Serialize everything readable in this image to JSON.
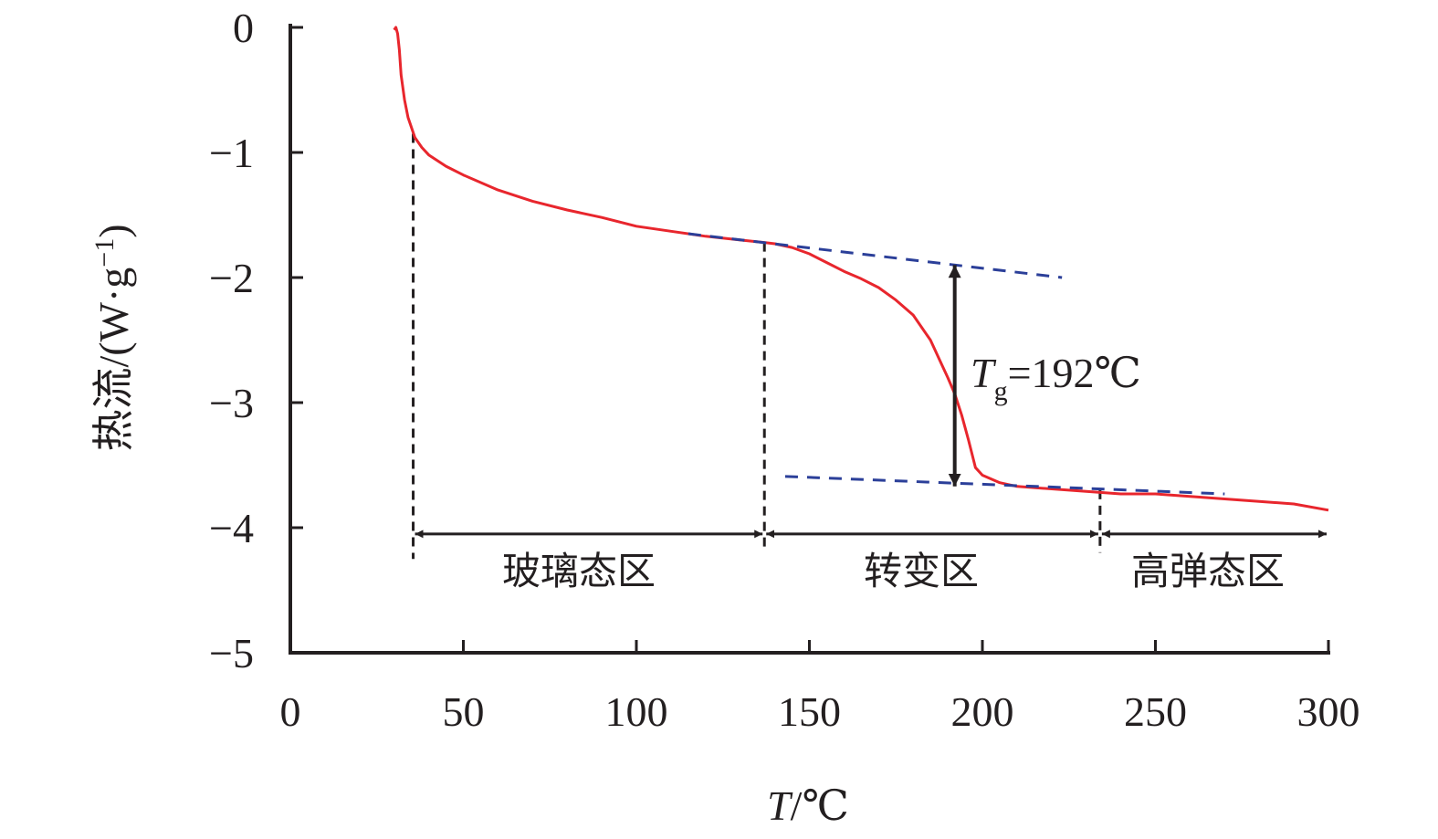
{
  "chart_data": {
    "type": "line",
    "xlabel": {
      "var": "T",
      "unit": "/℃"
    },
    "ylabel": {
      "prefix": "热流/(W·g",
      "sup": "−1",
      "suffix": ")"
    },
    "xlim": [
      0,
      300
    ],
    "ylim": [
      -5,
      0
    ],
    "xticks": [
      "0",
      "50",
      "100",
      "150",
      "200",
      "250",
      "300"
    ],
    "yticks": [
      "0",
      "−1",
      "−2",
      "−3",
      "−4",
      "−5"
    ],
    "grid": false,
    "series": [
      {
        "color": "#e8262d",
        "x": [
          30,
          30.5,
          31,
          31.5,
          32,
          33,
          34,
          36,
          38,
          40,
          45,
          50,
          60,
          70,
          80,
          90,
          100,
          110,
          120,
          130,
          137,
          140,
          145,
          150,
          155,
          160,
          165,
          170,
          175,
          180,
          185,
          188,
          190,
          192,
          194,
          196,
          198,
          200,
          205,
          210,
          220,
          230,
          240,
          250,
          260,
          270,
          280,
          290,
          300
        ],
        "y": [
          -0.02,
          0.0,
          -0.05,
          -0.18,
          -0.38,
          -0.58,
          -0.72,
          -0.88,
          -0.96,
          -1.02,
          -1.11,
          -1.18,
          -1.3,
          -1.39,
          -1.46,
          -1.52,
          -1.59,
          -1.63,
          -1.67,
          -1.7,
          -1.72,
          -1.73,
          -1.76,
          -1.81,
          -1.88,
          -1.95,
          -2.01,
          -2.08,
          -2.18,
          -2.3,
          -2.5,
          -2.68,
          -2.8,
          -2.93,
          -3.1,
          -3.3,
          -3.52,
          -3.58,
          -3.64,
          -3.67,
          -3.69,
          -3.71,
          -3.73,
          -3.73,
          -3.75,
          -3.77,
          -3.79,
          -3.81,
          -3.86
        ]
      }
    ],
    "baselines": [
      {
        "color": "#2b3f99",
        "dash": true,
        "x": [
          115,
          223
        ],
        "y": [
          -1.65,
          -2.0
        ]
      },
      {
        "color": "#2b3f99",
        "dash": true,
        "x": [
          143,
          270
        ],
        "y": [
          -3.59,
          -3.73
        ]
      }
    ],
    "vlines": [
      {
        "x": 35.5,
        "y": [
          -0.85,
          -4.25
        ]
      },
      {
        "x": 137,
        "y": [
          -1.72,
          -4.2
        ]
      },
      {
        "x": 234,
        "y": [
          -3.7,
          -4.2
        ]
      }
    ],
    "tg_arrow": {
      "x": 192,
      "y": [
        -1.9,
        -3.67
      ]
    },
    "region_arrow_y": -4.05,
    "annotation": {
      "symbol": "T",
      "subscript": "g",
      "value": "=192℃"
    },
    "regions": [
      {
        "label": "玻璃态区",
        "x": [
          35.5,
          137
        ]
      },
      {
        "label": "转变区",
        "x": [
          137,
          234
        ]
      },
      {
        "label": "高弹态区",
        "x": [
          234,
          300
        ]
      }
    ]
  }
}
